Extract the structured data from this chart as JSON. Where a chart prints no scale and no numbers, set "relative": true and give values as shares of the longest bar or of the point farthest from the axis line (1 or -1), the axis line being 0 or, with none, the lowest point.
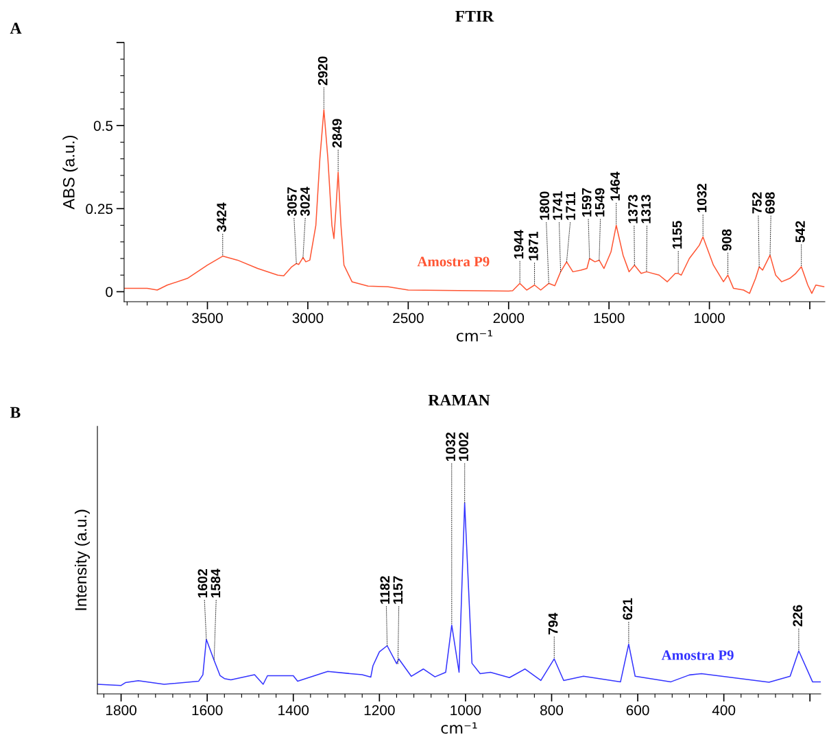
{
  "chart_data": [
    {
      "type": "line",
      "title": "FTIR",
      "xlabel": "cm⁻¹",
      "ylabel": "ABS (a.u.)",
      "xlim": [
        3915,
        425
      ],
      "xticks": [
        3500,
        3000,
        2500,
        2000,
        1500,
        1000,
        {
          "value": 500,
          "label": null
        }
      ],
      "ylim": [
        -0.03,
        0.75
      ],
      "yticks": [
        0,
        0.25,
        0.5,
        {
          "value": 0.75,
          "label": null
        }
      ],
      "series": [
        {
          "name": "Amostra P9",
          "color": "#ff5533",
          "x": [
            3915,
            3800,
            3750,
            3700,
            3600,
            3500,
            3424,
            3350,
            3250,
            3150,
            3120,
            3080,
            3057,
            3045,
            3024,
            3010,
            2990,
            2960,
            2940,
            2920,
            2900,
            2880,
            2870,
            2860,
            2849,
            2835,
            2820,
            2780,
            2700,
            2600,
            2500,
            2000,
            1980,
            1944,
            1910,
            1871,
            1840,
            1800,
            1770,
            1741,
            1711,
            1680,
            1640,
            1610,
            1597,
            1570,
            1549,
            1525,
            1490,
            1464,
            1430,
            1400,
            1373,
            1340,
            1313,
            1250,
            1210,
            1170,
            1155,
            1140,
            1100,
            1050,
            1032,
            980,
            930,
            908,
            880,
            830,
            800,
            770,
            752,
            735,
            698,
            670,
            640,
            600,
            570,
            542,
            510,
            490,
            470,
            430
          ],
          "values": [
            0.01,
            0.01,
            0.005,
            0.02,
            0.04,
            0.08,
            0.107,
            0.095,
            0.07,
            0.05,
            0.048,
            0.075,
            0.085,
            0.082,
            0.103,
            0.09,
            0.095,
            0.2,
            0.4,
            0.548,
            0.4,
            0.2,
            0.16,
            0.25,
            0.36,
            0.2,
            0.08,
            0.03,
            0.017,
            0.015,
            0.005,
            0.002,
            0.003,
            0.025,
            0.005,
            0.02,
            0.005,
            0.025,
            0.018,
            0.06,
            0.09,
            0.06,
            0.065,
            0.07,
            0.1,
            0.09,
            0.095,
            0.07,
            0.12,
            0.2,
            0.11,
            0.06,
            0.08,
            0.055,
            0.06,
            0.05,
            0.03,
            0.055,
            0.055,
            0.05,
            0.1,
            0.14,
            0.165,
            0.08,
            0.03,
            0.05,
            0.01,
            0.005,
            -0.005,
            0.04,
            0.075,
            0.065,
            0.11,
            0.05,
            0.03,
            0.04,
            0.055,
            0.075,
            0.02,
            -0.005,
            0.02,
            0.015
          ]
        }
      ],
      "annotations": [
        "A",
        {
          "text": "3424",
          "x": 3424,
          "y": 0.107
        },
        {
          "text": "3057",
          "x": 3057,
          "y": 0.085
        },
        {
          "text": "3024",
          "x": 3024,
          "y": 0.103
        },
        {
          "text": "2920",
          "x": 2920,
          "y": 0.548
        },
        {
          "text": "2849",
          "x": 2849,
          "y": 0.36
        },
        {
          "text": "1944",
          "x": 1944,
          "y": 0.025
        },
        {
          "text": "1871",
          "x": 1871,
          "y": 0.02
        },
        {
          "text": "1800",
          "x": 1800,
          "y": 0.025
        },
        {
          "text": "1741",
          "x": 1741,
          "y": 0.06
        },
        {
          "text": "1711",
          "x": 1711,
          "y": 0.09
        },
        {
          "text": "1597",
          "x": 1597,
          "y": 0.1
        },
        {
          "text": "1549",
          "x": 1549,
          "y": 0.095
        },
        {
          "text": "1464",
          "x": 1464,
          "y": 0.2
        },
        {
          "text": "1373",
          "x": 1373,
          "y": 0.08
        },
        {
          "text": "1313",
          "x": 1313,
          "y": 0.06
        },
        {
          "text": "1155",
          "x": 1155,
          "y": 0.055
        },
        {
          "text": "1032",
          "x": 1032,
          "y": 0.165
        },
        {
          "text": "908",
          "x": 908,
          "y": 0.05
        },
        {
          "text": "752",
          "x": 752,
          "y": 0.075
        },
        {
          "text": "698",
          "x": 698,
          "y": 0.11
        },
        {
          "text": "542",
          "x": 542,
          "y": 0.075
        }
      ]
    },
    {
      "type": "line",
      "title": "RAMAN",
      "xlabel": "cm⁻¹",
      "ylabel": "Intensity (a.u.)",
      "relative": true,
      "tick_labels": "x",
      "xlim": [
        1855,
        175
      ],
      "xticks": [
        1800,
        1600,
        1400,
        1200,
        1000,
        800,
        600,
        400,
        {
          "value": 200,
          "label": null
        }
      ],
      "series": [
        {
          "name": "Amostra P9",
          "color": "#3333ff",
          "x": [
            1855,
            1800,
            1790,
            1760,
            1700,
            1620,
            1610,
            1602,
            1584,
            1570,
            1560,
            1545,
            1490,
            1470,
            1460,
            1400,
            1390,
            1330,
            1320,
            1240,
            1220,
            1215,
            1200,
            1182,
            1160,
            1155,
            1126,
            1098,
            1071,
            1046,
            1032,
            1015,
            1002,
            985,
            966,
            942,
            898,
            862,
            825,
            794,
            772,
            726,
            640,
            621,
            606,
            523,
            480,
            452,
            295,
            246,
            226,
            194,
            175
          ],
          "values": [
            0.05,
            0.044,
            0.059,
            0.069,
            0.05,
            0.066,
            0.1,
            0.285,
            0.176,
            0.095,
            0.08,
            0.073,
            0.1,
            0.05,
            0.095,
            0.095,
            0.066,
            0.11,
            0.117,
            0.1,
            0.088,
            0.147,
            0.22,
            0.252,
            0.158,
            0.183,
            0.092,
            0.13,
            0.089,
            0.113,
            0.36,
            0.113,
            1,
            0.16,
            0.106,
            0.113,
            0.085,
            0.13,
            0.07,
            0.183,
            0.07,
            0.092,
            0.063,
            0.26,
            0.092,
            0.063,
            0.099,
            0.106,
            0.061,
            0.092,
            0.225,
            0.063,
            0.063
          ]
        }
      ],
      "annotations": [
        "B",
        {
          "text": "1602",
          "x": 1602,
          "y": 0.285
        },
        {
          "text": "1584",
          "x": 1584,
          "y": 0.176
        },
        {
          "text": "1182",
          "x": 1182,
          "y": 0.252
        },
        {
          "text": "1157",
          "x": 1157,
          "y": 0.158
        },
        {
          "text": "1032",
          "x": 1032,
          "y": 0.36
        },
        {
          "text": "1002",
          "x": 1002,
          "y": 1
        },
        {
          "text": "794",
          "x": 794,
          "y": 0.183
        },
        {
          "text": "621",
          "x": 621,
          "y": 0.26
        },
        {
          "text": "226",
          "x": 226,
          "y": 0.225
        }
      ]
    }
  ]
}
